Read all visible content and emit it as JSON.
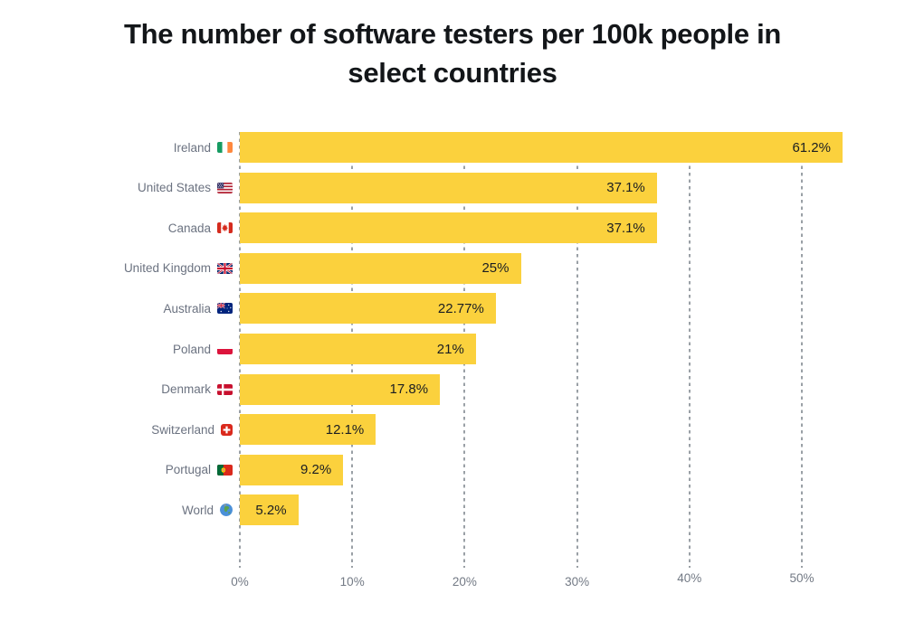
{
  "title": {
    "text": "The number of software testers per 100k people in select countries",
    "lines": [
      "The number of software testers per 100k people in",
      "select countries"
    ]
  },
  "chart_data": {
    "type": "bar",
    "orientation": "horizontal",
    "title": "The number of software testers per 100k people in select countries",
    "xlabel": "",
    "ylabel": "",
    "x_ticks": [
      "0%",
      "10%",
      "20%",
      "30%",
      "40%",
      "50%"
    ],
    "x_range": [
      0,
      50
    ],
    "grid": "dashed-vertical",
    "bar_color": "#fbd13d",
    "categories": [
      "Ireland",
      "United States",
      "Canada",
      "United Kingdom",
      "Australia",
      "Poland",
      "Denmark",
      "Switzerland",
      "Portugal",
      "World"
    ],
    "values": [
      61.2,
      37.1,
      37.1,
      25,
      22.77,
      21,
      17.8,
      12.1,
      9.2,
      5.2
    ],
    "items": [
      {
        "label": "Ireland",
        "flag": "ie",
        "flag_name": "ireland",
        "value": 61.2,
        "display": "61.2%"
      },
      {
        "label": "United States",
        "flag": "us",
        "flag_name": "united-states",
        "value": 37.1,
        "display": "37.1%"
      },
      {
        "label": "Canada",
        "flag": "ca",
        "flag_name": "canada",
        "value": 37.1,
        "display": "37.1%"
      },
      {
        "label": "United Kingdom",
        "flag": "gb",
        "flag_name": "united-kingdom",
        "value": 25,
        "display": "25%"
      },
      {
        "label": "Australia",
        "flag": "au",
        "flag_name": "australia",
        "value": 22.77,
        "display": "22.77%"
      },
      {
        "label": "Poland",
        "flag": "pl",
        "flag_name": "poland",
        "value": 21,
        "display": "21%"
      },
      {
        "label": "Denmark",
        "flag": "dk",
        "flag_name": "denmark",
        "value": 17.8,
        "display": "17.8%"
      },
      {
        "label": "Switzerland",
        "flag": "ch",
        "flag_name": "switzerland",
        "value": 12.1,
        "display": "12.1%"
      },
      {
        "label": "Portugal",
        "flag": "pt",
        "flag_name": "portugal",
        "value": 9.2,
        "display": "9.2%"
      },
      {
        "label": "World",
        "flag": "world",
        "flag_name": "world-globe",
        "value": 5.2,
        "display": "5.2%"
      }
    ]
  }
}
